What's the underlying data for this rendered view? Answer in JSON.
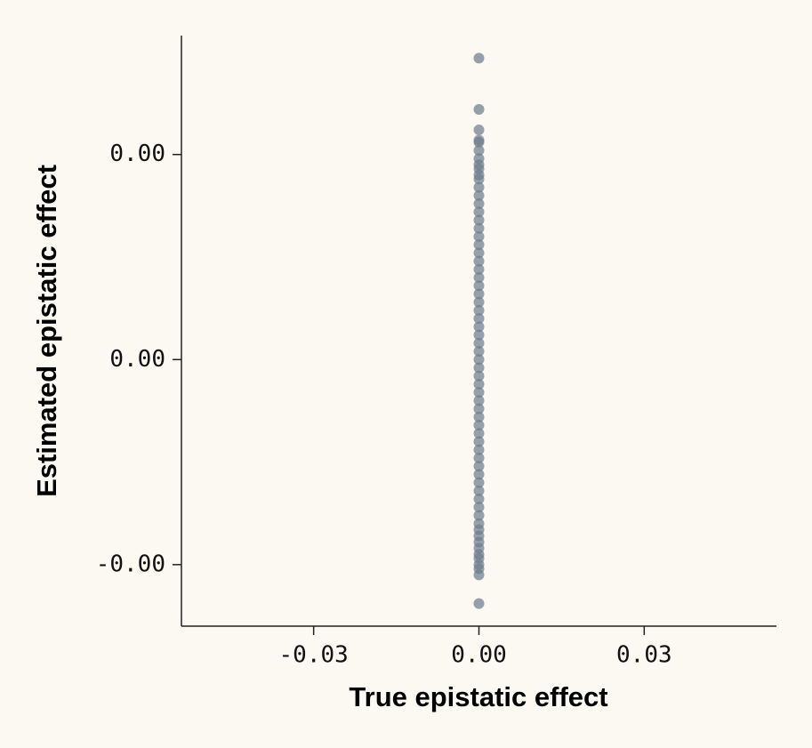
{
  "chart_data": {
    "type": "scatter",
    "x_label": "True epistatic effect",
    "y_label": "Estimated epistatic effect",
    "color": "#6b7b8c",
    "x": [
      0,
      0,
      0,
      0,
      0,
      0,
      0,
      0,
      0,
      0,
      0,
      0,
      0,
      0,
      0,
      0,
      0,
      0,
      0,
      0,
      0,
      0,
      0,
      0,
      0,
      0,
      0,
      0,
      0,
      0,
      0,
      0,
      0,
      0,
      0,
      0,
      0,
      0,
      0,
      0,
      0,
      0,
      0,
      0,
      0,
      0,
      0,
      0,
      0,
      0,
      0,
      0,
      0,
      0,
      0,
      0,
      0,
      0,
      0,
      0,
      0,
      0,
      0
    ],
    "y": [
      0.00147,
      0.00122,
      0.00112,
      0.00107,
      0.00106,
      0.00102,
      0.00098,
      0.00095,
      0.00093,
      0.0009,
      0.00088,
      0.00084,
      0.0008,
      0.00076,
      0.00072,
      0.00068,
      0.00064,
      0.0006,
      0.00056,
      0.00052,
      0.00048,
      0.00044,
      0.0004,
      0.00036,
      0.00032,
      0.00028,
      0.00024,
      0.0002,
      0.00016,
      0.00012,
      8e-05,
      4e-05,
      0,
      -4e-05,
      -8e-05,
      -0.00012,
      -0.00016,
      -0.0002,
      -0.00024,
      -0.00028,
      -0.00032,
      -0.00036,
      -0.0004,
      -0.00044,
      -0.00048,
      -0.00052,
      -0.00056,
      -0.0006,
      -0.00064,
      -0.00068,
      -0.00072,
      -0.00076,
      -0.0008,
      -0.00083,
      -0.00086,
      -0.00089,
      -0.00092,
      -0.00095,
      -0.00097,
      -0.001,
      -0.00102,
      -0.00105,
      -0.00119
    ],
    "xlim": [
      -0.054,
      0.054
    ],
    "ylim": [
      -0.0013,
      0.00158
    ],
    "xticks": [
      -0.03,
      {
        "value": 0,
        "label": "0.00"
      },
      0.03
    ],
    "yticks": [
      {
        "value": 0.001,
        "label": "0.00"
      },
      {
        "value": 0,
        "label": "0.00"
      },
      {
        "value": -0.001,
        "label": "-0.00"
      }
    ]
  }
}
